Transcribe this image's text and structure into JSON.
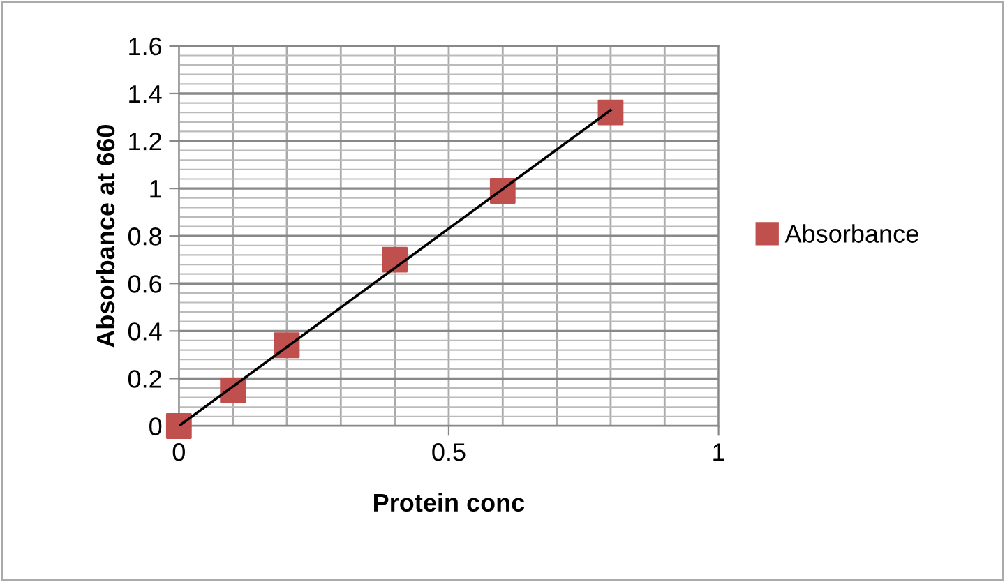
{
  "chart_data": {
    "type": "scatter",
    "xlabel": "Protein conc",
    "ylabel": "Absorbance at 660",
    "x": [
      0,
      0.1,
      0.2,
      0.4,
      0.6,
      0.8
    ],
    "series": [
      {
        "name": "Absorbance",
        "color": "#c0504d",
        "marker": "square",
        "values": [
          0,
          0.15,
          0.34,
          0.7,
          0.99,
          1.32
        ]
      },
      {
        "type": "line",
        "color": "#000000",
        "marker": "none",
        "line_style": "solid",
        "x": [
          0,
          0.8
        ],
        "values": [
          0.0,
          1.33
        ]
      }
    ],
    "xlim": [
      0,
      1
    ],
    "xticks": [
      0,
      0.5,
      1
    ],
    "ylim": [
      0,
      1.6
    ],
    "yticks": [
      0,
      0.2,
      0.4,
      0.6,
      0.8,
      1,
      1.2,
      1.4,
      1.6
    ],
    "grid": true,
    "legend": "right"
  }
}
